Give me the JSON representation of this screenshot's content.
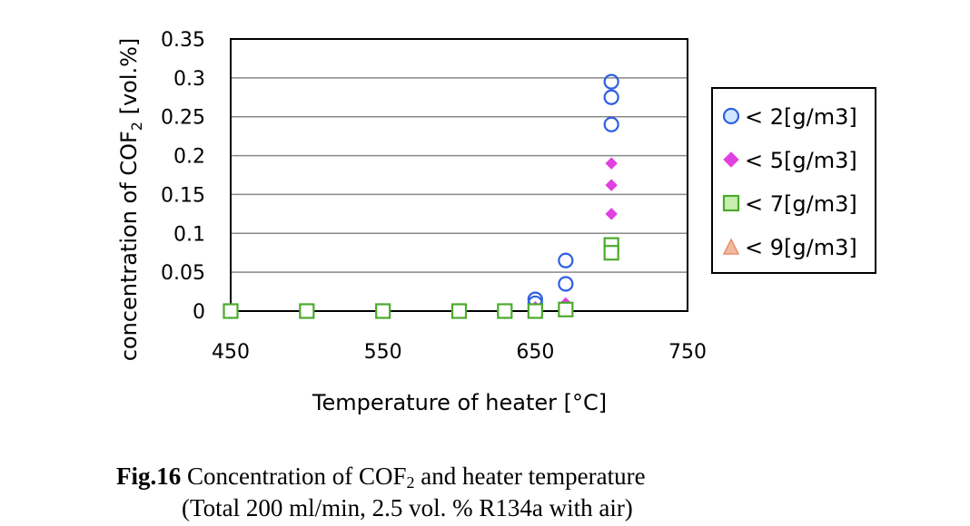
{
  "chart_data": {
    "type": "scatter",
    "xlabel": "Temperature of heater [°C]",
    "ylabel": {
      "pre": "concentration of COF",
      "sub": "2",
      "post": " [vol.%]"
    },
    "xlim": [
      450,
      750
    ],
    "ylim": [
      0,
      0.35
    ],
    "x_ticks": [
      "450",
      "550",
      "650",
      "750"
    ],
    "x_tick_values": [
      450,
      550,
      650,
      750
    ],
    "y_ticks": [
      "0",
      "0.05",
      "0.1",
      "0.15",
      "0.2",
      "0.25",
      "0.3",
      "0.35"
    ],
    "y_tick_values": [
      0,
      0.05,
      0.1,
      0.15,
      0.2,
      0.25,
      0.3,
      0.35
    ],
    "grid": "horizontal",
    "legend_position": "right",
    "series": [
      {
        "name": "< 2[g/m3]",
        "marker": "circle",
        "color": "#2f5fe0",
        "legend_fill": "#cfe8ff",
        "points": [
          {
            "x": 450,
            "y": 0
          },
          {
            "x": 500,
            "y": 0
          },
          {
            "x": 550,
            "y": 0
          },
          {
            "x": 600,
            "y": 0
          },
          {
            "x": 630,
            "y": 0
          },
          {
            "x": 650,
            "y": 0.015
          },
          {
            "x": 650,
            "y": 0.01
          },
          {
            "x": 670,
            "y": 0.065
          },
          {
            "x": 670,
            "y": 0.035
          },
          {
            "x": 700,
            "y": 0.295
          },
          {
            "x": 700,
            "y": 0.275
          },
          {
            "x": 700,
            "y": 0.24
          }
        ]
      },
      {
        "name": "< 5[g/m3]",
        "marker": "diamond",
        "color": "#e040e0",
        "legend_fill": "#e040e0",
        "points": [
          {
            "x": 450,
            "y": 0
          },
          {
            "x": 500,
            "y": 0
          },
          {
            "x": 550,
            "y": 0
          },
          {
            "x": 600,
            "y": 0
          },
          {
            "x": 650,
            "y": 0.005
          },
          {
            "x": 670,
            "y": 0.01
          },
          {
            "x": 700,
            "y": 0.19
          },
          {
            "x": 700,
            "y": 0.162
          },
          {
            "x": 700,
            "y": 0.125
          }
        ]
      },
      {
        "name": "< 7[g/m3]",
        "marker": "square",
        "color": "#4caa2c",
        "legend_fill": "#c8eeb0",
        "points": [
          {
            "x": 450,
            "y": 0
          },
          {
            "x": 500,
            "y": 0
          },
          {
            "x": 550,
            "y": 0
          },
          {
            "x": 600,
            "y": 0
          },
          {
            "x": 630,
            "y": 0
          },
          {
            "x": 650,
            "y": 0
          },
          {
            "x": 670,
            "y": 0.002
          },
          {
            "x": 700,
            "y": 0.085
          },
          {
            "x": 700,
            "y": 0.075
          }
        ]
      },
      {
        "name": "< 9[g/m3]",
        "marker": "triangle",
        "color": "#e8906a",
        "legend_fill": "#f2b8a0",
        "points": []
      }
    ]
  },
  "caption": {
    "fig_label": "Fig.16",
    "line1_pre": " Concentration of COF",
    "line1_sub": "2",
    "line1_post": " and heater temperature",
    "line2": "(Total 200 ml/min, 2.5 vol. % R134a with air)"
  }
}
